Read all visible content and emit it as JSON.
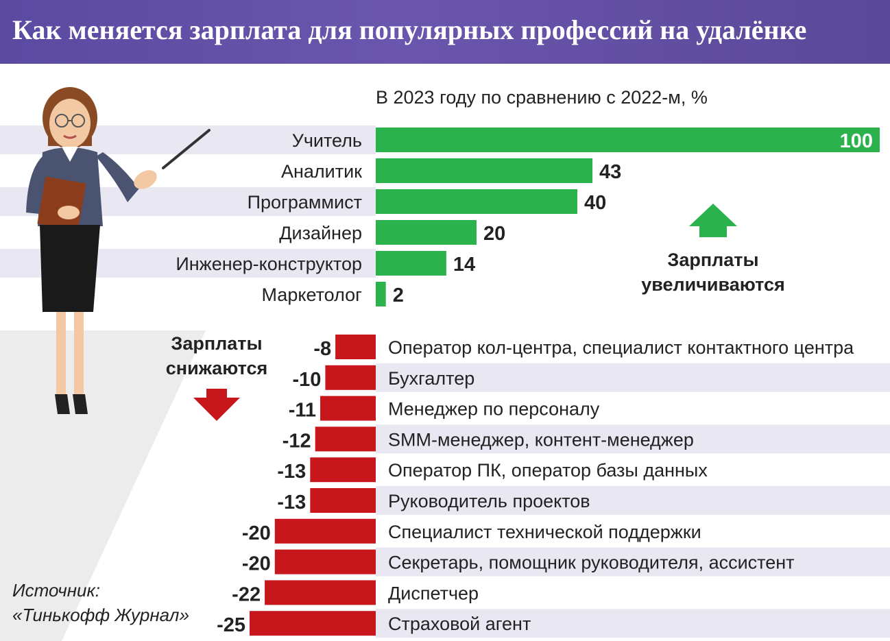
{
  "header": {
    "title": "Как меняется зарплата для популярных профессий на удалёнке"
  },
  "chart_data": {
    "type": "bar",
    "orientation": "horizontal",
    "subtitle": "В 2023 году по сравнению с 2022-м, %",
    "increase": {
      "note_line1": "Зарплаты",
      "note_line2": "увеличиваются",
      "categories": [
        "Учитель",
        "Аналитик",
        "Программист",
        "Дизайнер",
        "Инженер-конструктор",
        "Маркетолог"
      ],
      "values": [
        100,
        43,
        40,
        20,
        14,
        2
      ],
      "color": "#2bb24c"
    },
    "decrease": {
      "note_line1": "Зарплаты",
      "note_line2": "снижаются",
      "categories": [
        "Оператор кол-центра, специалист контактного центра",
        "Бухгалтер",
        "Менеджер по персоналу",
        "SMM-менеджер, контент-менеджер",
        "Оператор ПК, оператор базы данных",
        "Руководитель проектов",
        "Специалист технической поддержки",
        "Секретарь, помощник руководителя, ассистент",
        "Диспетчер",
        "Страховой агент"
      ],
      "values": [
        -8,
        -10,
        -11,
        -12,
        -13,
        -13,
        -20,
        -20,
        -22,
        -25
      ],
      "color": "#c8161d"
    }
  },
  "source": {
    "line1": "Источник:",
    "line2": "«Тинькофф Журнал»"
  },
  "colors": {
    "header": "#5b4aa1",
    "row_band": "#e9e7f1",
    "up_arrow": "#2bb24c",
    "down_arrow": "#c8161d"
  }
}
